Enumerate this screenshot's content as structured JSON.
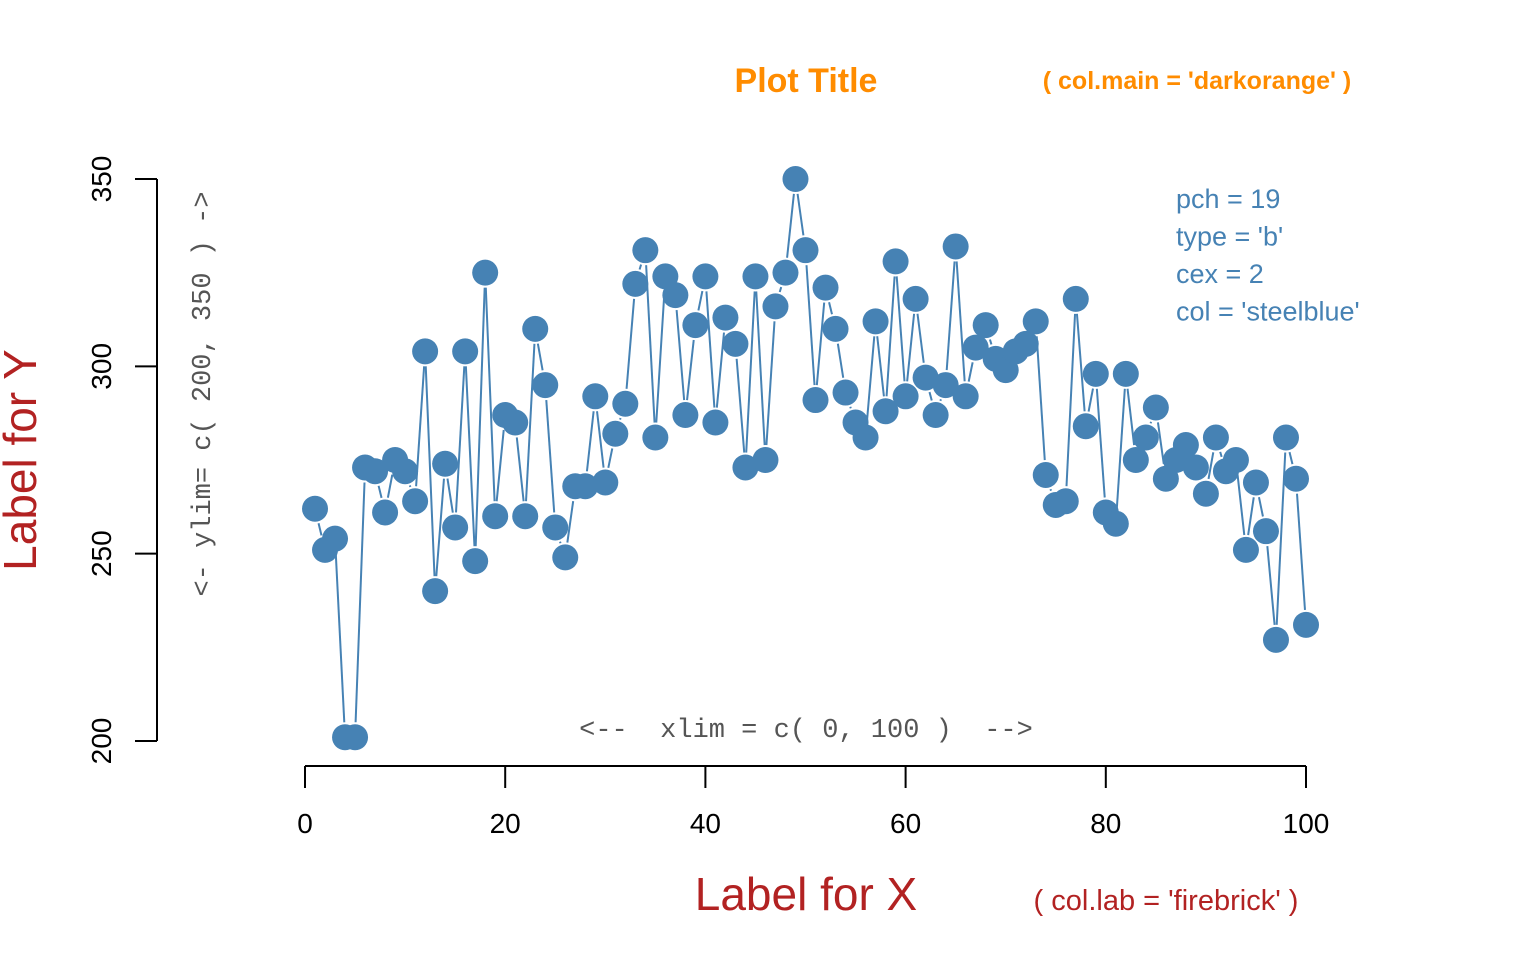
{
  "chart_data": {
    "type": "line",
    "plot_type": "b",
    "title": "Plot Title",
    "title_note": "( col.main = 'darkorange' )",
    "xlabel": "Label for X",
    "xlabel_note": "( col.lab = 'firebrick' )",
    "ylabel": "Label for Y",
    "xlim": [
      0,
      100
    ],
    "ylim": [
      200,
      350
    ],
    "xticks": [
      0,
      20,
      40,
      60,
      80,
      100
    ],
    "yticks": [
      200,
      250,
      300,
      350
    ],
    "xlim_note": "<--  xlim = c( 0, 100 )  -->",
    "ylim_note": "<- ylim= c( 200, 350 ) ->",
    "legend_lines": [
      "pch = 19",
      "type = 'b'",
      "cex = 2",
      "col = 'steelblue'"
    ],
    "grid": false,
    "colors": {
      "points": "#4682b4",
      "title": "#ff8c00",
      "labels": "#b22222",
      "annotation": "#555555",
      "axis": "#000000"
    },
    "x": [
      1,
      2,
      3,
      4,
      5,
      6,
      7,
      8,
      9,
      10,
      11,
      12,
      13,
      14,
      15,
      16,
      17,
      18,
      19,
      20,
      21,
      22,
      23,
      24,
      25,
      26,
      27,
      28,
      29,
      30,
      31,
      32,
      33,
      34,
      35,
      36,
      37,
      38,
      39,
      40,
      41,
      42,
      43,
      44,
      45,
      46,
      47,
      48,
      49,
      50,
      51,
      52,
      53,
      54,
      55,
      56,
      57,
      58,
      59,
      60,
      61,
      62,
      63,
      64,
      65,
      66,
      67,
      68,
      69,
      70,
      71,
      72,
      73,
      74,
      75,
      76,
      77,
      78,
      79,
      80,
      81,
      82,
      83,
      84,
      85,
      86,
      87,
      88,
      89,
      90,
      91,
      92,
      93,
      94,
      95,
      96,
      97,
      98,
      99,
      100
    ],
    "y": [
      262,
      251,
      254,
      201,
      201,
      273,
      272,
      261,
      275,
      272,
      264,
      304,
      240,
      274,
      257,
      304,
      248,
      325,
      260,
      287,
      285,
      260,
      310,
      295,
      257,
      249,
      268,
      268,
      292,
      269,
      282,
      290,
      322,
      331,
      281,
      324,
      319,
      287,
      311,
      324,
      285,
      313,
      306,
      273,
      324,
      275,
      316,
      325,
      350,
      331,
      291,
      321,
      310,
      293,
      285,
      281,
      312,
      288,
      328,
      292,
      318,
      297,
      287,
      295,
      332,
      292,
      305,
      311,
      302,
      299,
      304,
      306,
      312,
      271,
      263,
      264,
      318,
      284,
      298,
      261,
      258,
      298,
      275,
      281,
      289,
      270,
      275,
      279,
      273,
      266,
      281,
      272,
      275,
      251,
      269,
      256,
      227,
      281,
      270,
      231
    ]
  }
}
